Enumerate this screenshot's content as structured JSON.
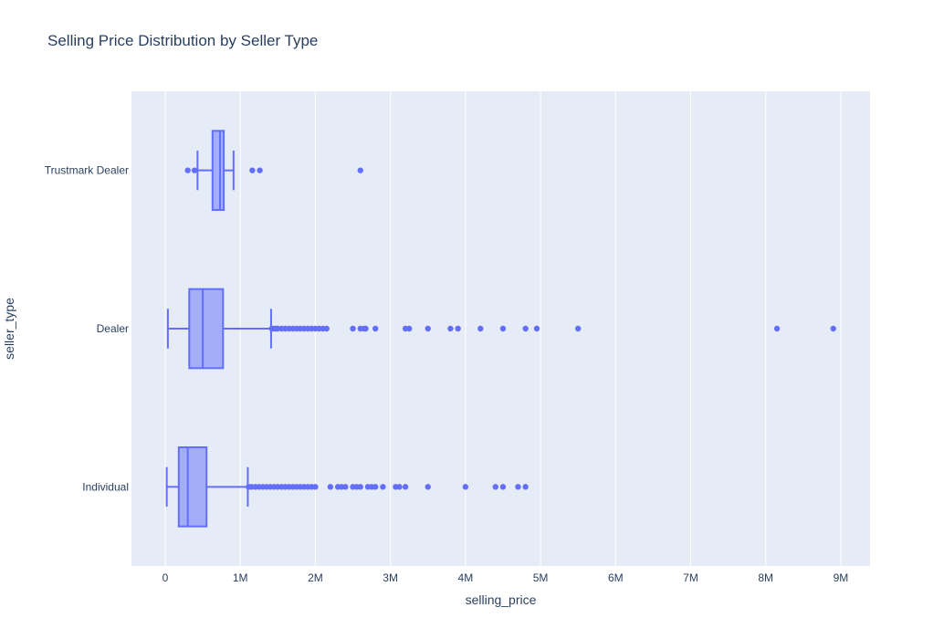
{
  "chart_data": {
    "type": "box",
    "orientation": "horizontal",
    "title": "Selling Price Distribution by Seller Type",
    "xlabel": "selling_price",
    "ylabel": "seller_type",
    "xlim": [
      -450000,
      9390000
    ],
    "x_ticks": [
      0,
      1000000,
      2000000,
      3000000,
      4000000,
      5000000,
      6000000,
      7000000,
      8000000,
      9000000
    ],
    "x_tick_labels": [
      "0",
      "1M",
      "2M",
      "3M",
      "4M",
      "5M",
      "6M",
      "7M",
      "8M",
      "9M"
    ],
    "grid": true,
    "colors": {
      "trace": "#636EFA",
      "plot_bg": "#E5ECF6",
      "grid": "#FFFFFF",
      "text": "#2a3f5f"
    },
    "categories": [
      "Trustmark Dealer",
      "Dealer",
      "Individual"
    ],
    "series": [
      {
        "category": "Trustmark Dealer",
        "lowerfence": 430000,
        "q1": 630000,
        "median": 730000,
        "q3": 780000,
        "upperfence": 910000,
        "outliers": [
          300000,
          390000,
          1160000,
          1260000,
          2600000
        ]
      },
      {
        "category": "Dealer",
        "lowerfence": 35000,
        "q1": 320000,
        "median": 500000,
        "q3": 770000,
        "upperfence": 1410000,
        "outliers": [
          1420000,
          1450000,
          1480000,
          1500000,
          1550000,
          1600000,
          1650000,
          1700000,
          1750000,
          1800000,
          1850000,
          1900000,
          1950000,
          2000000,
          2050000,
          2100000,
          2150000,
          2500000,
          2600000,
          2650000,
          2670000,
          2800000,
          3200000,
          3250000,
          3500000,
          3800000,
          3900000,
          4200000,
          4500000,
          4800000,
          4950000,
          5500000,
          8150000,
          8900000
        ]
      },
      {
        "category": "Individual",
        "lowerfence": 20000,
        "q1": 180000,
        "median": 300000,
        "q3": 550000,
        "upperfence": 1100000,
        "outliers": [
          1110000,
          1150000,
          1200000,
          1250000,
          1300000,
          1350000,
          1400000,
          1450000,
          1500000,
          1550000,
          1600000,
          1650000,
          1700000,
          1750000,
          1800000,
          1850000,
          1900000,
          1950000,
          2000000,
          2200000,
          2300000,
          2350000,
          2400000,
          2500000,
          2550000,
          2600000,
          2700000,
          2750000,
          2800000,
          2900000,
          3070000,
          3120000,
          3200000,
          3500000,
          4000000,
          4400000,
          4500000,
          4700000,
          4800000
        ]
      }
    ]
  }
}
